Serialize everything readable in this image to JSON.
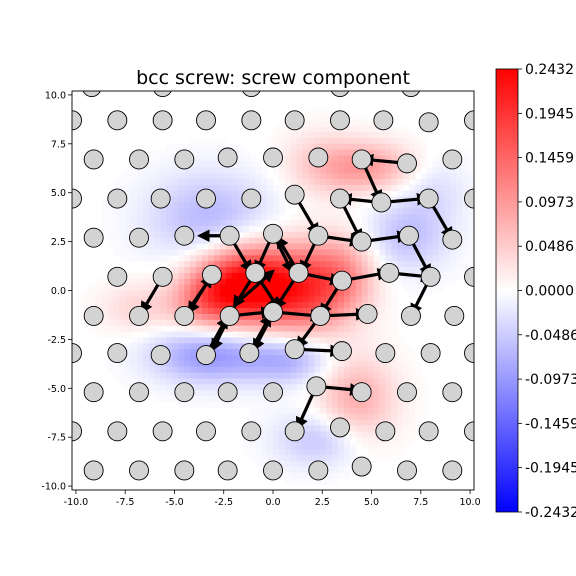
{
  "chart_data": {
    "type": "heatmap",
    "title": "bcc screw: screw component",
    "xlim": [
      -10.2,
      10.2
    ],
    "ylim": [
      -10.2,
      10.2
    ],
    "xticks": [
      "-10.0",
      "-7.5",
      "-5.0",
      "-2.5",
      "0.0",
      "2.5",
      "5.0",
      "7.5",
      "10.0"
    ],
    "xtick_values": [
      -10,
      -7.5,
      -5,
      -2.5,
      0,
      2.5,
      5,
      7.5,
      10
    ],
    "yticks": [
      "10.0",
      "7.5",
      "5.0",
      "2.5",
      "0.0",
      "-2.5",
      "-5.0",
      "-7.5",
      "-10.0"
    ],
    "ytick_values": [
      10,
      7.5,
      5,
      2.5,
      0,
      -2.5,
      -5,
      -7.5,
      -10
    ],
    "colorbar": {
      "range": [
        -0.2432,
        0.2432
      ],
      "ticks": [
        "0.2432",
        "0.1945",
        "0.1459",
        "0.0973",
        "0.0486",
        "0.0000",
        "-0.0486",
        "-0.0973",
        "-0.1459",
        "-0.1945",
        "-0.2432"
      ],
      "tick_values": [
        0.2432,
        0.1945,
        0.1459,
        0.0973,
        0.0486,
        0.0,
        -0.0486,
        -0.0973,
        -0.1459,
        -0.1945,
        -0.2432
      ],
      "colormap": "bwr"
    },
    "colors": {
      "atom_fill": "#d3d3d3",
      "atom_edge": "#000000",
      "arrow": "#000000"
    },
    "field_blobs": [
      {
        "x": -1.5,
        "y": 0.3,
        "amp": 0.24,
        "sx": 1.7,
        "sy": 1.4
      },
      {
        "x": 1.5,
        "y": 0.0,
        "amp": 0.16,
        "sx": 1.6,
        "sy": 1.6
      },
      {
        "x": -3.5,
        "y": -0.6,
        "amp": 0.08,
        "sx": 1.2,
        "sy": 1.0
      },
      {
        "x": 3.6,
        "y": 0.8,
        "amp": 0.08,
        "sx": 1.2,
        "sy": 1.4
      },
      {
        "x": 4.8,
        "y": 6.3,
        "amp": 0.09,
        "sx": 1.7,
        "sy": 0.9
      },
      {
        "x": 4.2,
        "y": -5.6,
        "amp": 0.08,
        "sx": 1.4,
        "sy": 1.6
      },
      {
        "x": 2.4,
        "y": 6.5,
        "amp": 0.04,
        "sx": 1.4,
        "sy": 1.2
      },
      {
        "x": -6.8,
        "y": -0.9,
        "amp": 0.04,
        "sx": 1.4,
        "sy": 0.9
      },
      {
        "x": -3.2,
        "y": 3.7,
        "amp": -0.07,
        "sx": 2.2,
        "sy": 1.6
      },
      {
        "x": -3.3,
        "y": -3.3,
        "amp": -0.1,
        "sx": 2.0,
        "sy": 1.0
      },
      {
        "x": 0.8,
        "y": -3.5,
        "amp": -0.08,
        "sx": 1.6,
        "sy": 0.9
      },
      {
        "x": 6.8,
        "y": 2.8,
        "amp": -0.06,
        "sx": 1.5,
        "sy": 1.3
      },
      {
        "x": 2.4,
        "y": -7.6,
        "amp": -0.06,
        "sx": 1.6,
        "sy": 1.0
      },
      {
        "x": 8.2,
        "y": 5.2,
        "amp": -0.03,
        "sx": 1.2,
        "sy": 1.2
      }
    ],
    "atoms": [
      [
        -9.2,
        10.4
      ],
      [
        -5.6,
        10.4
      ],
      [
        -1.1,
        10.4
      ],
      [
        3.4,
        10.4
      ],
      [
        7.0,
        10.4
      ],
      [
        -10.2,
        8.7
      ],
      [
        -7.9,
        8.7
      ],
      [
        -5.6,
        8.7
      ],
      [
        -3.4,
        8.7
      ],
      [
        -1.1,
        8.7
      ],
      [
        1.1,
        8.7
      ],
      [
        3.4,
        8.7
      ],
      [
        5.6,
        8.7
      ],
      [
        7.9,
        8.6
      ],
      [
        10.2,
        8.7
      ],
      [
        -9.1,
        6.7
      ],
      [
        -6.8,
        6.7
      ],
      [
        -4.5,
        6.7
      ],
      [
        -2.3,
        6.8
      ],
      [
        0.0,
        6.8
      ],
      [
        2.3,
        6.8
      ],
      [
        4.5,
        6.7
      ],
      [
        6.8,
        6.5
      ],
      [
        9.1,
        6.7
      ],
      [
        -10.2,
        4.7
      ],
      [
        -7.9,
        4.7
      ],
      [
        -5.7,
        4.7
      ],
      [
        -3.4,
        4.7
      ],
      [
        -1.1,
        4.7
      ],
      [
        1.1,
        4.9
      ],
      [
        3.4,
        4.7
      ],
      [
        5.5,
        4.5
      ],
      [
        7.9,
        4.7
      ],
      [
        10.2,
        4.7
      ],
      [
        -9.1,
        2.7
      ],
      [
        -6.8,
        2.7
      ],
      [
        -4.5,
        2.8
      ],
      [
        -2.2,
        2.8
      ],
      [
        0.0,
        2.9
      ],
      [
        2.3,
        2.8
      ],
      [
        4.5,
        2.5
      ],
      [
        6.9,
        2.8
      ],
      [
        9.1,
        2.6
      ],
      [
        -7.9,
        0.7
      ],
      [
        -5.6,
        0.7
      ],
      [
        -3.1,
        0.8
      ],
      [
        -0.9,
        0.9
      ],
      [
        1.3,
        0.9
      ],
      [
        3.5,
        0.5
      ],
      [
        5.9,
        0.9
      ],
      [
        8.0,
        0.7
      ],
      [
        10.2,
        0.7
      ],
      [
        -9.1,
        -1.3
      ],
      [
        -6.8,
        -1.3
      ],
      [
        -4.5,
        -1.3
      ],
      [
        -2.2,
        -1.3
      ],
      [
        0.0,
        -1.1
      ],
      [
        2.4,
        -1.3
      ],
      [
        4.8,
        -1.2
      ],
      [
        7.0,
        -1.3
      ],
      [
        9.2,
        -1.3
      ],
      [
        -10.2,
        -3.2
      ],
      [
        -7.9,
        -3.2
      ],
      [
        -5.7,
        -3.3
      ],
      [
        -3.4,
        -3.3
      ],
      [
        -1.2,
        -3.2
      ],
      [
        1.1,
        -3.0
      ],
      [
        3.5,
        -3.1
      ],
      [
        5.7,
        -3.2
      ],
      [
        8.0,
        -3.2
      ],
      [
        10.2,
        -3.2
      ],
      [
        -9.1,
        -5.2
      ],
      [
        -6.8,
        -5.2
      ],
      [
        -4.5,
        -5.2
      ],
      [
        -2.3,
        -5.2
      ],
      [
        0.0,
        -5.2
      ],
      [
        2.2,
        -4.9
      ],
      [
        4.5,
        -5.2
      ],
      [
        6.8,
        -5.2
      ],
      [
        9.1,
        -5.2
      ],
      [
        -10.2,
        -7.2
      ],
      [
        -7.9,
        -7.2
      ],
      [
        -5.6,
        -7.2
      ],
      [
        -3.4,
        -7.2
      ],
      [
        -1.1,
        -7.2
      ],
      [
        1.1,
        -7.2
      ],
      [
        3.4,
        -7.0
      ],
      [
        5.7,
        -7.2
      ],
      [
        7.9,
        -7.2
      ],
      [
        10.2,
        -7.2
      ],
      [
        -9.1,
        -9.2
      ],
      [
        -6.8,
        -9.2
      ],
      [
        -4.5,
        -9.2
      ],
      [
        -2.3,
        -9.2
      ],
      [
        0.0,
        -9.2
      ],
      [
        2.3,
        -9.2
      ],
      [
        4.5,
        -9.0
      ],
      [
        6.8,
        -9.2
      ],
      [
        9.1,
        -9.2
      ]
    ],
    "arrows": [
      [
        -0.9,
        0.9,
        -1.9,
        -0.7
      ],
      [
        1.3,
        0.9,
        0.2,
        -0.8
      ],
      [
        0.0,
        -1.1,
        2.3,
        -1.3
      ],
      [
        -2.2,
        -1.3,
        -0.2,
        -1.1
      ],
      [
        0.0,
        2.9,
        -0.8,
        1.1
      ],
      [
        -2.2,
        2.8,
        -1.2,
        1.1
      ],
      [
        2.3,
        2.8,
        1.5,
        1.1
      ],
      [
        1.3,
        0.9,
        3.3,
        0.5
      ],
      [
        -3.1,
        0.8,
        -4.2,
        -1.0
      ],
      [
        -4.5,
        -1.3,
        -3.2,
        0.6
      ],
      [
        -1.2,
        -3.2,
        -0.2,
        -1.4
      ],
      [
        -3.4,
        -3.3,
        -2.4,
        -1.5
      ],
      [
        1.1,
        -3.0,
        3.3,
        -3.1
      ],
      [
        2.4,
        -1.3,
        1.3,
        -2.8
      ],
      [
        2.4,
        -1.3,
        4.6,
        -1.2
      ],
      [
        3.5,
        0.5,
        2.5,
        -1.1
      ],
      [
        3.5,
        0.5,
        5.7,
        0.9
      ],
      [
        5.9,
        0.9,
        7.9,
        0.7
      ],
      [
        4.5,
        2.5,
        6.7,
        2.8
      ],
      [
        2.3,
        2.8,
        4.3,
        2.5
      ],
      [
        1.1,
        4.9,
        2.2,
        3.0
      ],
      [
        3.4,
        4.7,
        4.4,
        2.7
      ],
      [
        5.5,
        4.5,
        3.6,
        4.7
      ],
      [
        5.5,
        4.5,
        7.7,
        4.7
      ],
      [
        7.9,
        4.7,
        9.0,
        2.8
      ],
      [
        6.9,
        2.8,
        7.9,
        0.9
      ],
      [
        4.5,
        6.7,
        5.4,
        4.7
      ],
      [
        8.0,
        0.7,
        7.1,
        -1.1
      ],
      [
        6.8,
        6.5,
        4.7,
        6.7
      ],
      [
        2.2,
        -4.9,
        4.3,
        -5.1
      ],
      [
        2.2,
        -4.9,
        1.3,
        -6.9
      ],
      [
        -5.6,
        0.7,
        -6.6,
        -1.0
      ],
      [
        -1.9,
        -0.7,
        -3.0,
        -2.9
      ],
      [
        0.2,
        -0.8,
        -0.9,
        -2.9
      ],
      [
        -0.9,
        0.9,
        0.2,
        -0.8
      ],
      [
        -1.9,
        -0.7,
        -0.1,
        0.9
      ],
      [
        -2.2,
        2.8,
        -3.6,
        2.8
      ],
      [
        1.3,
        0.9,
        0.3,
        2.6
      ],
      [
        0.0,
        2.9,
        0.9,
        1.1
      ]
    ]
  }
}
